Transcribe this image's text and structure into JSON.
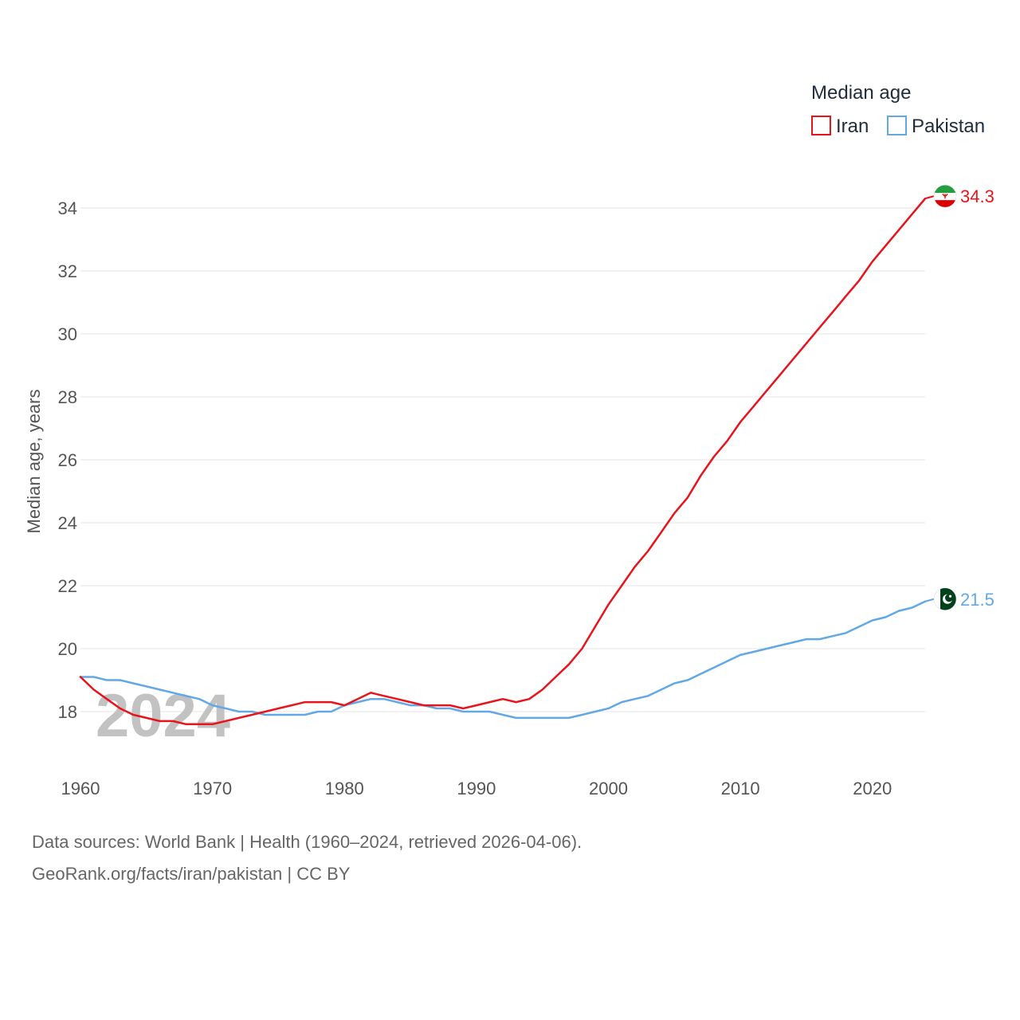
{
  "chart_data": {
    "type": "line",
    "legend_title": "Median age",
    "ylabel": "Median age, years",
    "xlabel": "",
    "xlim": [
      1960,
      2024
    ],
    "ylim": [
      16.5,
      35
    ],
    "yticks": [
      18,
      20,
      22,
      24,
      26,
      28,
      30,
      32,
      34
    ],
    "xticks": [
      1960,
      1970,
      1980,
      1990,
      2000,
      2010,
      2020
    ],
    "year_watermark": "2024",
    "legend_placement": "top-right",
    "grid": true,
    "series": [
      {
        "name": "Iran",
        "color": "#e8141c",
        "end_label": "34.3",
        "flag": "iran-flag-icon",
        "x": [
          1960,
          1961,
          1962,
          1963,
          1964,
          1965,
          1966,
          1967,
          1968,
          1969,
          1970,
          1971,
          1972,
          1973,
          1974,
          1975,
          1976,
          1977,
          1978,
          1979,
          1980,
          1981,
          1982,
          1983,
          1984,
          1985,
          1986,
          1987,
          1988,
          1989,
          1990,
          1991,
          1992,
          1993,
          1994,
          1995,
          1996,
          1997,
          1998,
          1999,
          2000,
          2001,
          2002,
          2003,
          2004,
          2005,
          2006,
          2007,
          2008,
          2009,
          2010,
          2011,
          2012,
          2013,
          2014,
          2015,
          2016,
          2017,
          2018,
          2019,
          2020,
          2021,
          2022,
          2023,
          2024
        ],
        "values": [
          19.1,
          18.7,
          18.4,
          18.1,
          17.9,
          17.8,
          17.7,
          17.7,
          17.6,
          17.6,
          17.6,
          17.7,
          17.8,
          17.9,
          18.0,
          18.1,
          18.2,
          18.3,
          18.3,
          18.3,
          18.2,
          18.4,
          18.6,
          18.5,
          18.4,
          18.3,
          18.2,
          18.2,
          18.2,
          18.1,
          18.2,
          18.3,
          18.4,
          18.3,
          18.4,
          18.7,
          19.1,
          19.5,
          20.0,
          20.7,
          21.4,
          22.0,
          22.6,
          23.1,
          23.7,
          24.3,
          24.8,
          25.5,
          26.1,
          26.6,
          27.2,
          27.7,
          28.2,
          28.7,
          29.2,
          29.7,
          30.2,
          30.7,
          31.2,
          31.7,
          32.3,
          32.8,
          33.3,
          33.8,
          34.3
        ]
      },
      {
        "name": "Pakistan",
        "color": "#62a8e5",
        "end_label": "21.5",
        "flag": "pakistan-flag-icon",
        "x": [
          1960,
          1961,
          1962,
          1963,
          1964,
          1965,
          1966,
          1967,
          1968,
          1969,
          1970,
          1971,
          1972,
          1973,
          1974,
          1975,
          1976,
          1977,
          1978,
          1979,
          1980,
          1981,
          1982,
          1983,
          1984,
          1985,
          1986,
          1987,
          1988,
          1989,
          1990,
          1991,
          1992,
          1993,
          1994,
          1995,
          1996,
          1997,
          1998,
          1999,
          2000,
          2001,
          2002,
          2003,
          2004,
          2005,
          2006,
          2007,
          2008,
          2009,
          2010,
          2011,
          2012,
          2013,
          2014,
          2015,
          2016,
          2017,
          2018,
          2019,
          2020,
          2021,
          2022,
          2023,
          2024
        ],
        "values": [
          19.1,
          19.1,
          19.0,
          19.0,
          18.9,
          18.8,
          18.7,
          18.6,
          18.5,
          18.4,
          18.2,
          18.1,
          18.0,
          18.0,
          17.9,
          17.9,
          17.9,
          17.9,
          18.0,
          18.0,
          18.2,
          18.3,
          18.4,
          18.4,
          18.3,
          18.2,
          18.2,
          18.1,
          18.1,
          18.0,
          18.0,
          18.0,
          17.9,
          17.8,
          17.8,
          17.8,
          17.8,
          17.8,
          17.9,
          18.0,
          18.1,
          18.3,
          18.4,
          18.5,
          18.7,
          18.9,
          19.0,
          19.2,
          19.4,
          19.6,
          19.8,
          19.9,
          20.0,
          20.1,
          20.2,
          20.3,
          20.3,
          20.4,
          20.5,
          20.7,
          20.9,
          21.0,
          21.2,
          21.3,
          21.5
        ]
      }
    ]
  },
  "footer": {
    "source_line": "Data sources: World Bank | Health (1960–2024, retrieved 2026-04-06).",
    "attribution_line": "GeoRank.org/facts/iran/pakistan | CC BY"
  },
  "colors": {
    "grid": "#e6e6e6",
    "tick_text": "#555555",
    "watermark": "#c2c2c2",
    "legend_text": "#1f2d3d",
    "iran_flag_green": "#239f40",
    "iran_flag_white": "#ffffff",
    "iran_flag_red": "#da0000",
    "pakistan_flag_green": "#01411c"
  }
}
